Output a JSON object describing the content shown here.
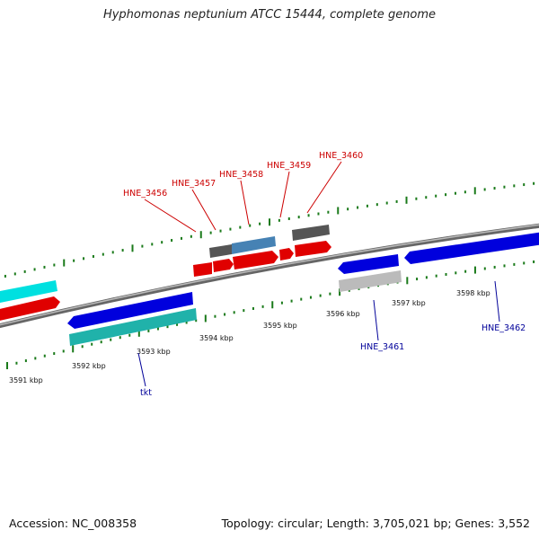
{
  "title": "Hyphomonas neptunium ATCC 15444, complete genome",
  "footer": {
    "accession": "Accession: NC_008358",
    "summary": "Topology: circular; Length: 3,705,021 bp; Genes: 3,552"
  },
  "colors": {
    "backbone": "#7f7f7f",
    "tick": "#1a7a1a",
    "forward_label": "#cc0000",
    "reverse_label": "#000099",
    "red_gene": "#ff0000",
    "blue_gene": "#0000ee",
    "cyan_gene": "#00dddd",
    "teal_gene": "#20b2aa",
    "gray_gene": "#555555",
    "lightgray_gene": "#bbbbbb",
    "steelblue_gene": "#4682b4"
  },
  "scale_labels": [
    "3591 kbp",
    "3592 kbp",
    "3593 kbp",
    "3594 kbp",
    "3595 kbp",
    "3596 kbp",
    "3597 kbp",
    "3598 kbp"
  ],
  "gene_labels": {
    "forward": [
      "HNE_3456",
      "HNE_3457",
      "HNE_3458",
      "HNE_3459",
      "HNE_3460"
    ],
    "reverse": [
      "tkt",
      "HNE_3461",
      "HNE_3462"
    ]
  }
}
